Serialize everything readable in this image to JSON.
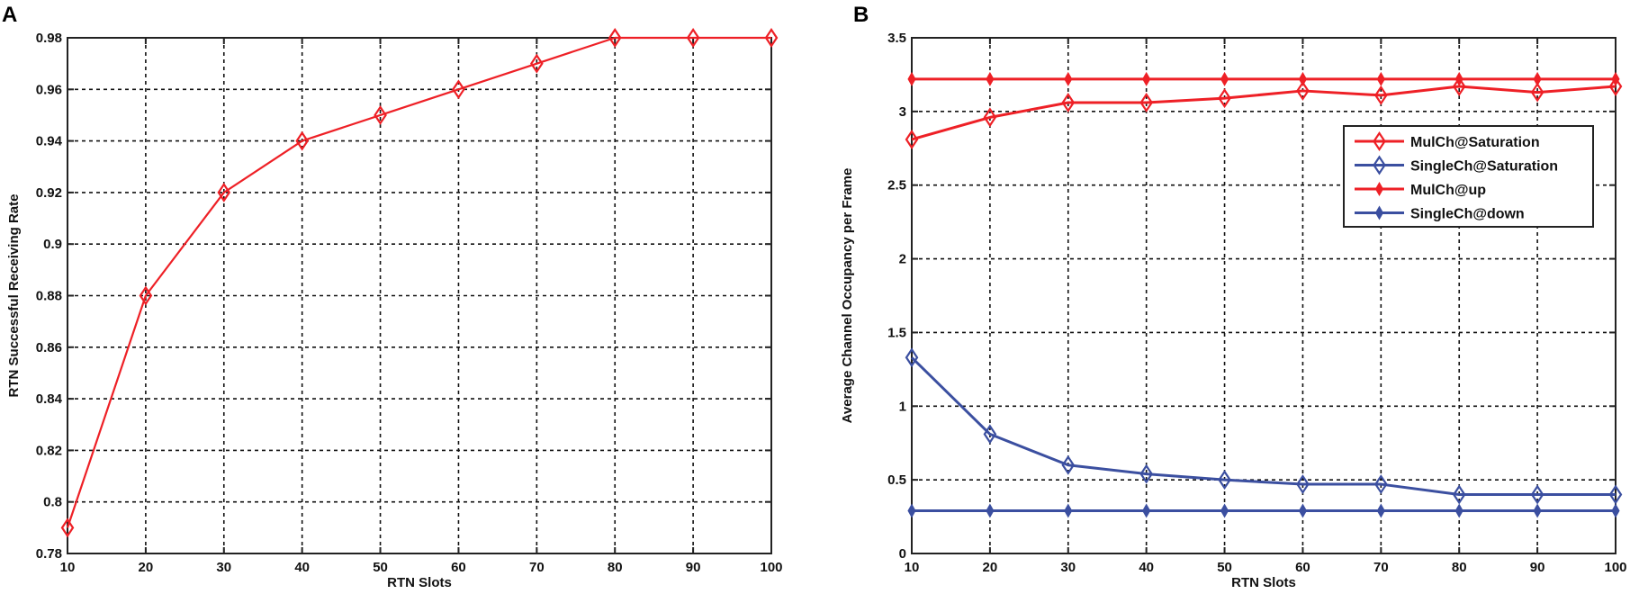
{
  "figure": {
    "panels": [
      {
        "label": "A"
      },
      {
        "label": "B"
      }
    ]
  },
  "chart_data": [
    {
      "panel": "A",
      "type": "line",
      "title": "",
      "xlabel": "RTN Slots",
      "ylabel": "RTN Successful Receiving Rate",
      "x": [
        10,
        20,
        30,
        40,
        50,
        60,
        70,
        80,
        90,
        100
      ],
      "xticks": [
        "10",
        "20",
        "30",
        "40",
        "50",
        "60",
        "70",
        "80",
        "90",
        "100"
      ],
      "yticks": [
        "0.78",
        "0.8",
        "0.82",
        "0.84",
        "0.86",
        "0.88",
        "0.9",
        "0.92",
        "0.94",
        "0.96",
        "0.98"
      ],
      "xlim": [
        10,
        100
      ],
      "ylim": [
        0.78,
        0.98
      ],
      "grid": true,
      "legend": null,
      "series": [
        {
          "name": "RTN Successful Receiving Rate",
          "color": "#ee2026",
          "marker": "diamond-open",
          "values": [
            0.79,
            0.88,
            0.92,
            0.94,
            0.95,
            0.96,
            0.97,
            0.98,
            0.98,
            0.98
          ]
        }
      ]
    },
    {
      "panel": "B",
      "type": "line",
      "title": "",
      "xlabel": "RTN Slots",
      "ylabel": "Average Channel Occupancy per Frame",
      "x": [
        10,
        20,
        30,
        40,
        50,
        60,
        70,
        80,
        90,
        100
      ],
      "xticks": [
        "10",
        "20",
        "30",
        "40",
        "50",
        "60",
        "70",
        "80",
        "90",
        "100"
      ],
      "yticks": [
        "0",
        "0.5",
        "1",
        "1.5",
        "2",
        "2.5",
        "3",
        "3.5"
      ],
      "xlim": [
        10,
        100
      ],
      "ylim": [
        0,
        3.5
      ],
      "grid": true,
      "legend_position": "upper right (inside, below top lines)",
      "series": [
        {
          "name": "MulCh@Saturation",
          "color": "#ee2026",
          "marker": "diamond-open",
          "values": [
            2.81,
            2.96,
            3.06,
            3.06,
            3.09,
            3.14,
            3.11,
            3.17,
            3.13,
            3.17
          ]
        },
        {
          "name": "SingleCh@Saturation",
          "color": "#3b4fa0",
          "marker": "diamond-open",
          "values": [
            1.33,
            0.81,
            0.6,
            0.54,
            0.5,
            0.47,
            0.47,
            0.4,
            0.4,
            0.4
          ]
        },
        {
          "name": "MulCh@up",
          "color": "#ee2026",
          "marker": "diamond-filled-small",
          "values": [
            3.22,
            3.22,
            3.22,
            3.22,
            3.22,
            3.22,
            3.22,
            3.22,
            3.22,
            3.22
          ]
        },
        {
          "name": "SingleCh@down",
          "color": "#3b4fa0",
          "marker": "diamond-filled-small",
          "values": [
            0.29,
            0.29,
            0.29,
            0.29,
            0.29,
            0.29,
            0.29,
            0.29,
            0.29,
            0.29
          ]
        }
      ]
    }
  ],
  "colors": {
    "red": "#ee2026",
    "blue": "#3b4fa0",
    "axis": "#222222",
    "grid": "#111111"
  }
}
